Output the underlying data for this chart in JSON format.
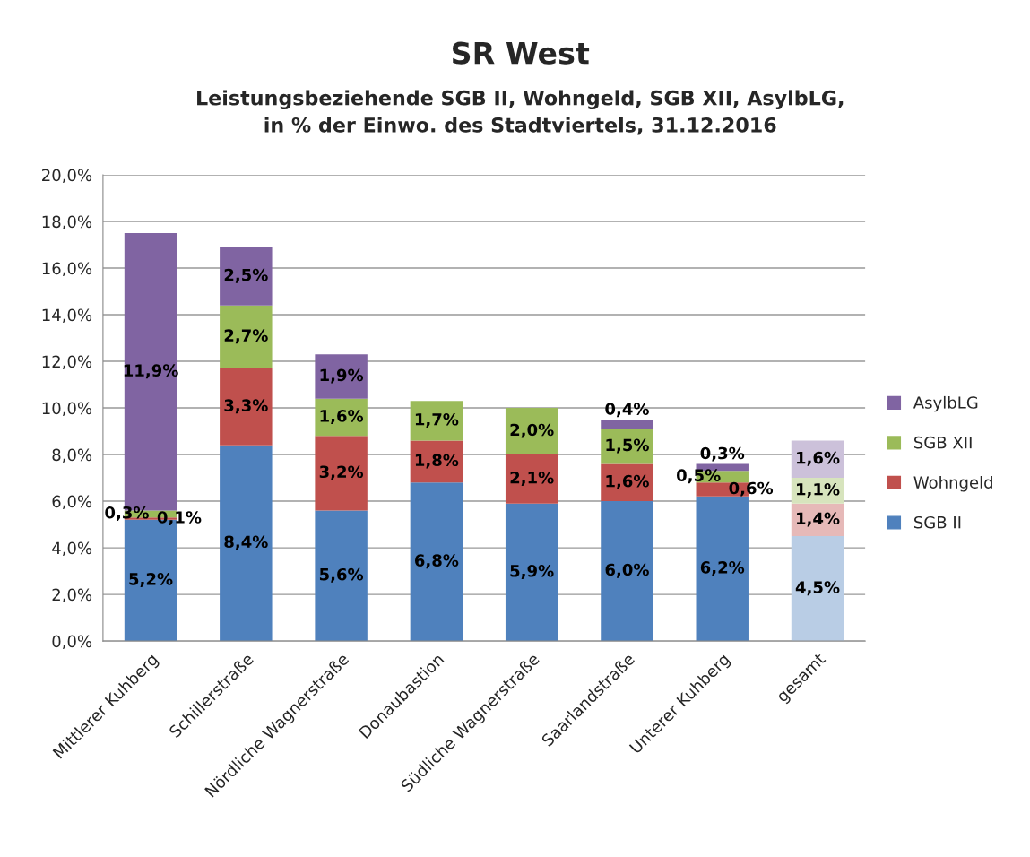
{
  "chart_data": {
    "type": "bar",
    "stacked": true,
    "title": "SR West",
    "subtitle": "Leistungsbeziehende SGB II, Wohngeld, SGB XII, AsylbLG,\nin % der Einwo. des Stadtviertels, 31.12.2016",
    "categories": [
      "Mittlerer Kuhberg",
      "Schillerstraße",
      "Nördliche Wagnerstraße",
      "Donaubastion",
      "Südliche Wagnerstraße",
      "Saarlandstraße",
      "Unterer Kuhberg",
      "gesamt"
    ],
    "series": [
      {
        "name": "SGB II",
        "color": "#4f81bd",
        "colors": [
          "#4f81bd",
          "#4f81bd",
          "#4f81bd",
          "#4f81bd",
          "#4f81bd",
          "#4f81bd",
          "#4f81bd",
          "#b9cde5"
        ],
        "values": [
          5.2,
          8.4,
          5.6,
          6.8,
          5.9,
          6.0,
          6.2,
          4.5
        ],
        "value_labels": [
          "5,2%",
          "8,4%",
          "5,6%",
          "6,8%",
          "5,9%",
          "6,0%",
          "6,2%",
          "4,5%"
        ]
      },
      {
        "name": "Wohngeld",
        "color": "#c0504d",
        "colors": [
          "#c0504d",
          "#c0504d",
          "#c0504d",
          "#c0504d",
          "#c0504d",
          "#c0504d",
          "#c0504d",
          "#e6b9b8"
        ],
        "values": [
          0.1,
          3.3,
          3.2,
          1.8,
          2.1,
          1.6,
          0.6,
          1.4
        ],
        "value_labels": [
          "0,1%",
          "3,3%",
          "3,2%",
          "1,8%",
          "2,1%",
          "1,6%",
          "0,6%",
          "1,4%"
        ]
      },
      {
        "name": "SGB XII",
        "color": "#9bbb59",
        "colors": [
          "#9bbb59",
          "#9bbb59",
          "#9bbb59",
          "#9bbb59",
          "#9bbb59",
          "#9bbb59",
          "#9bbb59",
          "#d7e4bd"
        ],
        "values": [
          0.3,
          2.7,
          1.6,
          1.7,
          2.0,
          1.5,
          0.5,
          1.1
        ],
        "value_labels": [
          "0,3%",
          "2,7%",
          "1,6%",
          "1,7%",
          "2,0%",
          "1,5%",
          "0,5%",
          "1,1%"
        ]
      },
      {
        "name": "AsylbLG",
        "color": "#8064a2",
        "colors": [
          "#8064a2",
          "#8064a2",
          "#8064a2",
          null,
          null,
          "#8064a2",
          "#8064a2",
          "#ccc1da"
        ],
        "values": [
          11.9,
          2.5,
          1.9,
          null,
          null,
          0.4,
          0.3,
          1.6
        ],
        "value_labels": [
          "11,9%",
          "2,5%",
          "1,9%",
          null,
          null,
          "0,4%",
          "0,3%",
          "1,6%"
        ]
      }
    ],
    "ylim": [
      0,
      20
    ],
    "yticks": [
      {
        "value": 0,
        "label": "0,0%"
      },
      {
        "value": 2,
        "label": "2,0%"
      },
      {
        "value": 4,
        "label": "4,0%"
      },
      {
        "value": 6,
        "label": "6,0%"
      },
      {
        "value": 8,
        "label": "8,0%"
      },
      {
        "value": 10,
        "label": "10,0%"
      },
      {
        "value": 12,
        "label": "12,0%"
      },
      {
        "value": 14,
        "label": "14,0%"
      },
      {
        "value": 16,
        "label": "16,0%"
      },
      {
        "value": 18,
        "label": "18,0%"
      },
      {
        "value": 20,
        "label": "20,0%"
      }
    ],
    "grid": "y",
    "legend": "right"
  }
}
